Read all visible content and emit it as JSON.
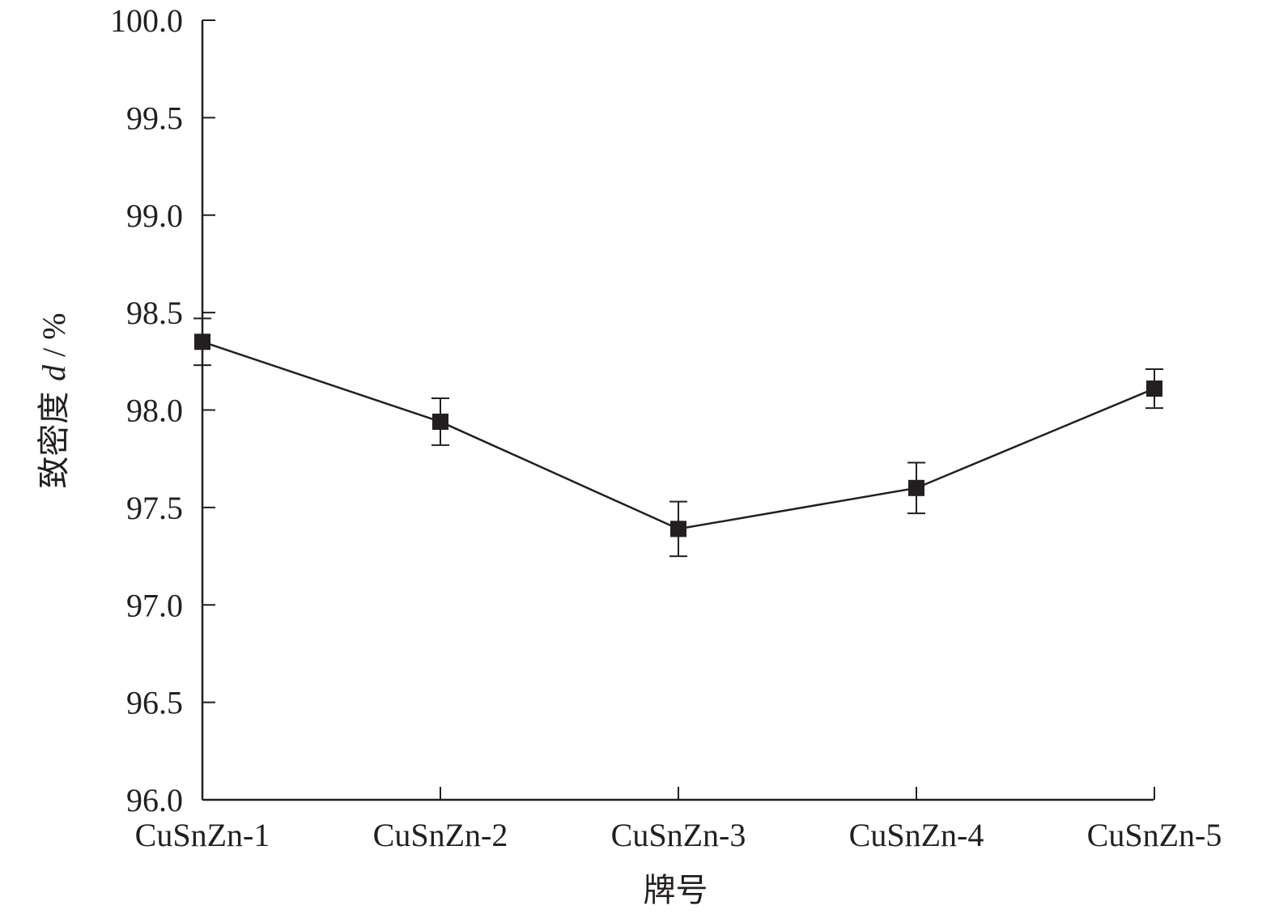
{
  "chart_data": {
    "type": "line",
    "title": "",
    "xlabel": "牌号",
    "ylabel": {
      "prefix": "致密度 ",
      "symbol": "d",
      "suffix": " / %"
    },
    "categories": [
      "CuSnZn-1",
      "CuSnZn-2",
      "CuSnZn-3",
      "CuSnZn-4",
      "CuSnZn-5"
    ],
    "series": [
      {
        "values": [
          98.35,
          97.94,
          97.39,
          97.6,
          98.11
        ],
        "error": [
          0.12,
          0.12,
          0.14,
          0.13,
          0.1
        ],
        "marker": "square"
      }
    ],
    "ylim": [
      96.0,
      100.0
    ],
    "yticks": [
      "96.0",
      "96.5",
      "97.0",
      "97.5",
      "98.0",
      "98.5",
      "99.0",
      "99.5",
      "100.0"
    ],
    "grid": false,
    "legend": "none",
    "colors": {
      "ink": "#231f20"
    }
  }
}
